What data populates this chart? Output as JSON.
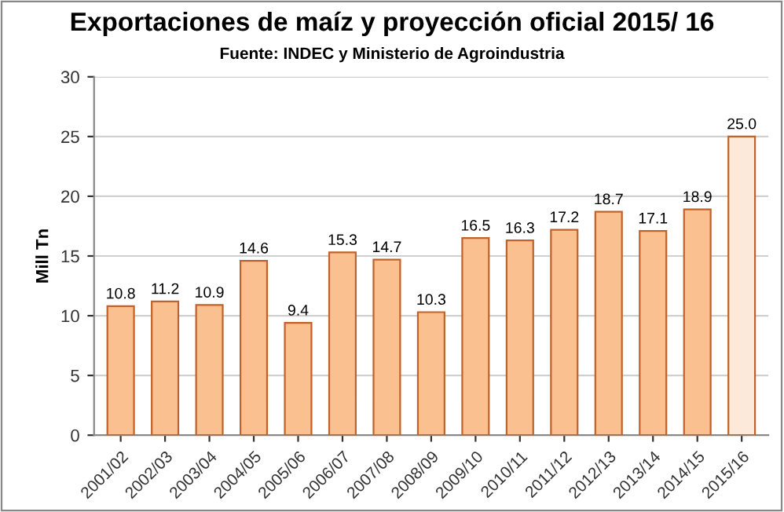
{
  "chart_data": {
    "type": "bar",
    "title": "Exportaciones de maíz y proyección oficial 2015/ 16",
    "subtitle": "Fuente: INDEC y Ministerio de Agroindustria",
    "ylabel": "Mill Tn",
    "categories": [
      "2001/02",
      "2002/03",
      "2003/04",
      "2004/05",
      "2005/06",
      "2006/07",
      "2007/08",
      "2008/09",
      "2009/10",
      "2010/11",
      "2011/12",
      "2012/13",
      "2013/14",
      "2014/15",
      "2015/16"
    ],
    "values": [
      10.8,
      11.2,
      10.9,
      14.6,
      9.4,
      15.3,
      14.7,
      10.3,
      16.5,
      16.3,
      17.2,
      18.7,
      17.1,
      18.9,
      25.0
    ],
    "value_labels": [
      "10.8",
      "11.2",
      "10.9",
      "14.6",
      "9.4",
      "15.3",
      "14.7",
      "10.3",
      "16.5",
      "16.3",
      "17.2",
      "18.7",
      "17.1",
      "18.9",
      "25.0"
    ],
    "colors": [
      "#fac090",
      "#fac090",
      "#fac090",
      "#fac090",
      "#fac090",
      "#fac090",
      "#fac090",
      "#fac090",
      "#fac090",
      "#fac090",
      "#fac090",
      "#fac090",
      "#fac090",
      "#fac090",
      "#fde9d9"
    ],
    "ylim": [
      0,
      30
    ],
    "yticks": [
      0,
      5,
      10,
      15,
      20,
      25,
      30
    ],
    "grid": "y"
  }
}
